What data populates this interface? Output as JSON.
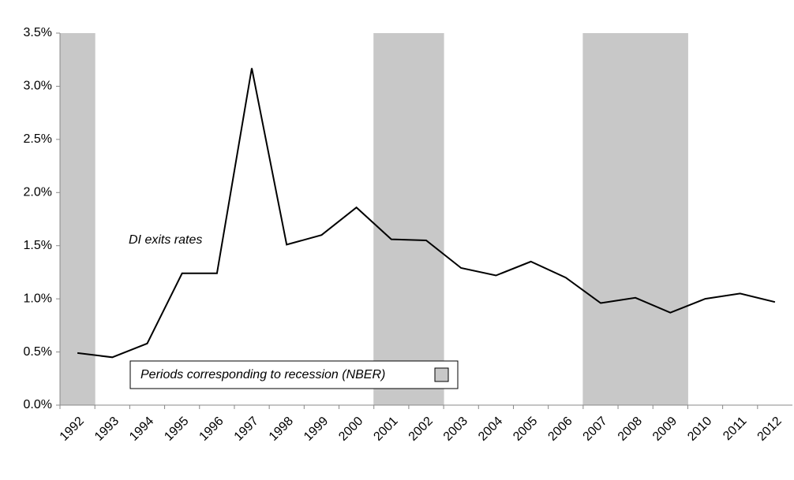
{
  "chart_data": {
    "type": "line",
    "annotation": "DI exits rates",
    "legend_label": "Periods corresponding to recession (NBER)",
    "categories": [
      "1992",
      "1993",
      "1994",
      "1995",
      "1996",
      "1997",
      "1998",
      "1999",
      "2000",
      "2001",
      "2002",
      "2003",
      "2004",
      "2005",
      "2006",
      "2007",
      "2008",
      "2009",
      "2010",
      "2011",
      "2012"
    ],
    "values": [
      0.49,
      0.45,
      0.58,
      1.24,
      1.24,
      3.17,
      1.51,
      1.6,
      1.86,
      1.56,
      1.55,
      1.29,
      1.22,
      1.35,
      1.2,
      0.96,
      1.01,
      0.87,
      1.0,
      1.05,
      0.97
    ],
    "recession": [
      true,
      false,
      false,
      false,
      false,
      false,
      false,
      false,
      false,
      true,
      true,
      false,
      false,
      false,
      false,
      true,
      true,
      true,
      false,
      false,
      false
    ],
    "color": "#000000",
    "shade_color": "#c8c8c8",
    "ylim": [
      0,
      3.5
    ],
    "yticks": [
      {
        "value": 0,
        "label": "0.0%"
      },
      {
        "value": 0.5,
        "label": "0.5%"
      },
      {
        "value": 1,
        "label": "1.0%"
      },
      {
        "value": 1.5,
        "label": "1.5%"
      },
      {
        "value": 2,
        "label": "2.0%"
      },
      {
        "value": 2.5,
        "label": "2.5%"
      },
      {
        "value": 3,
        "label": "3.0%"
      },
      {
        "value": 3.5,
        "label": "3.5%"
      }
    ]
  }
}
